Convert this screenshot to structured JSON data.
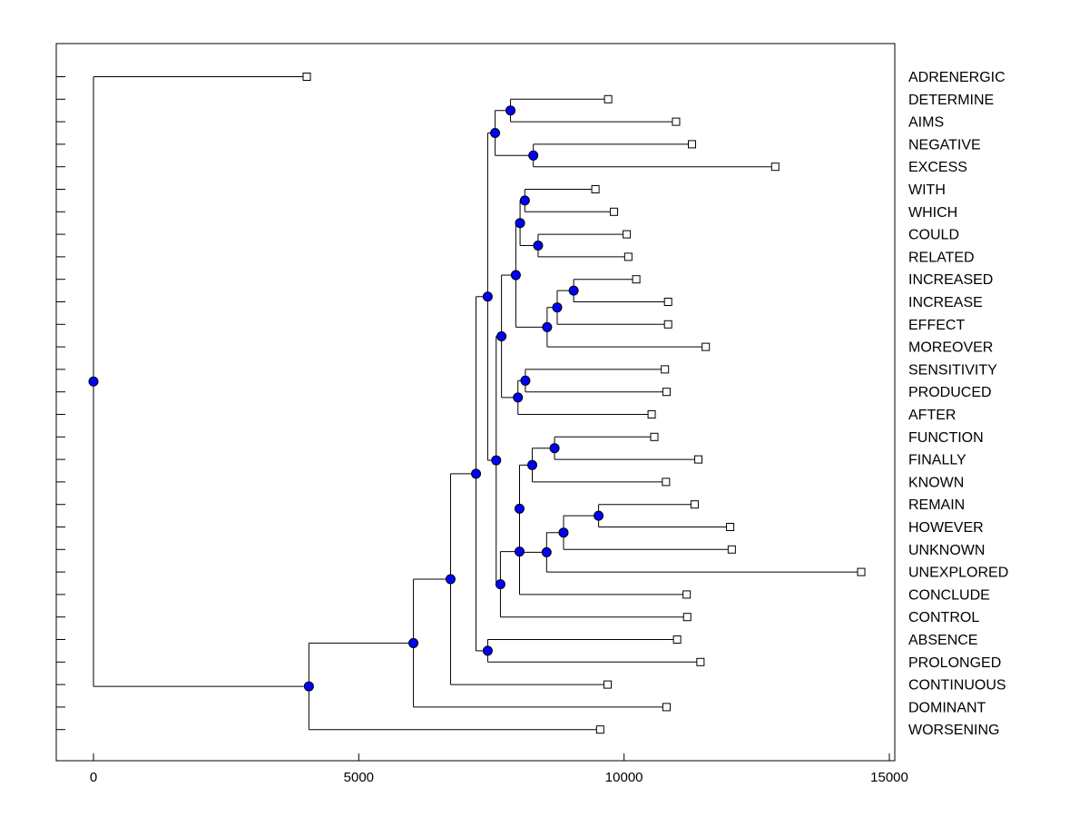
{
  "colors": {
    "internal_node": "#0000ff",
    "line": "#000000",
    "leaf_fill": "#ffffff"
  },
  "chart_data": {
    "type": "dendrogram",
    "orientation": "horizontal",
    "title": "",
    "xlabel": "",
    "ylabel": "",
    "xlim": [
      -700,
      15000
    ],
    "xticks": [
      0,
      5000,
      10000,
      15000
    ],
    "xtick_labels": [
      "0",
      "5000",
      "10000",
      "15000"
    ],
    "leaves": [
      {
        "label": "ADRENERGIC",
        "x": 4020
      },
      {
        "label": "DETERMINE",
        "x": 9700
      },
      {
        "label": "AIMS",
        "x": 10980
      },
      {
        "label": "NEGATIVE",
        "x": 11280
      },
      {
        "label": "EXCESS",
        "x": 12850
      },
      {
        "label": "WITH",
        "x": 9460
      },
      {
        "label": "WHICH",
        "x": 9810
      },
      {
        "label": "COULD",
        "x": 10050
      },
      {
        "label": "RELATED",
        "x": 10080
      },
      {
        "label": "INCREASED",
        "x": 10230
      },
      {
        "label": "INCREASE",
        "x": 10830
      },
      {
        "label": "EFFECT",
        "x": 10830
      },
      {
        "label": "MOREOVER",
        "x": 11540
      },
      {
        "label": "SENSITIVITY",
        "x": 10770
      },
      {
        "label": "PRODUCED",
        "x": 10800
      },
      {
        "label": "AFTER",
        "x": 10520
      },
      {
        "label": "FUNCTION",
        "x": 10570
      },
      {
        "label": "FINALLY",
        "x": 11400
      },
      {
        "label": "KNOWN",
        "x": 10790
      },
      {
        "label": "REMAIN",
        "x": 11330
      },
      {
        "label": "HOWEVER",
        "x": 12000
      },
      {
        "label": "UNKNOWN",
        "x": 12030
      },
      {
        "label": "UNEXPLORED",
        "x": 14470
      },
      {
        "label": "CONCLUDE",
        "x": 11180
      },
      {
        "label": "CONTROL",
        "x": 11190
      },
      {
        "label": "ABSENCE",
        "x": 11000
      },
      {
        "label": "PROLONGED",
        "x": 11440
      },
      {
        "label": "CONTINUOUS",
        "x": 9690
      },
      {
        "label": "DOMINANT",
        "x": 10800
      },
      {
        "label": "WORSENING",
        "x": 9550
      }
    ],
    "nodes": [
      {
        "id": "n1",
        "x": 7860,
        "children": [
          1,
          2
        ]
      },
      {
        "id": "n2",
        "x": 8290,
        "children": [
          3,
          4
        ]
      },
      {
        "id": "n3",
        "x": 7570,
        "children": [
          "n1",
          "n2"
        ]
      },
      {
        "id": "n4",
        "x": 8130,
        "children": [
          5,
          6
        ]
      },
      {
        "id": "n5",
        "x": 8380,
        "children": [
          7,
          8
        ]
      },
      {
        "id": "n6",
        "x": 8040,
        "children": [
          "n4",
          "n5"
        ]
      },
      {
        "id": "n7",
        "x": 9050,
        "children": [
          9,
          10
        ]
      },
      {
        "id": "n8",
        "x": 8740,
        "children": [
          "n7",
          11
        ]
      },
      {
        "id": "n9",
        "x": 8550,
        "children": [
          "n8",
          12
        ]
      },
      {
        "id": "n10",
        "x": 7960,
        "children": [
          "n6",
          "n9"
        ]
      },
      {
        "id": "n11",
        "x": 8140,
        "children": [
          13,
          14
        ]
      },
      {
        "id": "n12",
        "x": 8000,
        "children": [
          "n11",
          15
        ]
      },
      {
        "id": "n13",
        "x": 7690,
        "children": [
          "n10",
          "n12"
        ]
      },
      {
        "id": "n14",
        "x": 8690,
        "children": [
          16,
          17
        ]
      },
      {
        "id": "n15",
        "x": 8270,
        "children": [
          "n14",
          18
        ]
      },
      {
        "id": "n16",
        "x": 9520,
        "children": [
          19,
          20
        ]
      },
      {
        "id": "n17",
        "x": 8860,
        "children": [
          "n16",
          21
        ]
      },
      {
        "id": "n18",
        "x": 8540,
        "children": [
          "n17",
          22
        ]
      },
      {
        "id": "n19",
        "x": 8030,
        "children": [
          "n15",
          "n18"
        ]
      },
      {
        "id": "n20",
        "x": 8030,
        "children": [
          "n19",
          23
        ]
      },
      {
        "id": "n21",
        "x": 7670,
        "children": [
          "n20",
          24
        ]
      },
      {
        "id": "n22",
        "x": 7590,
        "children": [
          "n13",
          "n21"
        ]
      },
      {
        "id": "n23",
        "x": 7430,
        "children": [
          "n3",
          "n22"
        ]
      },
      {
        "id": "n24",
        "x": 7430,
        "children": [
          25,
          26
        ]
      },
      {
        "id": "n25",
        "x": 7210,
        "children": [
          "n23",
          "n24"
        ]
      },
      {
        "id": "n26",
        "x": 6730,
        "children": [
          "n25",
          27
        ]
      },
      {
        "id": "n27",
        "x": 6030,
        "children": [
          "n26",
          28
        ]
      },
      {
        "id": "n28",
        "x": 4060,
        "children": [
          "n27",
          29
        ]
      },
      {
        "id": "root",
        "x": 0,
        "children": [
          0,
          "n28"
        ]
      }
    ]
  }
}
